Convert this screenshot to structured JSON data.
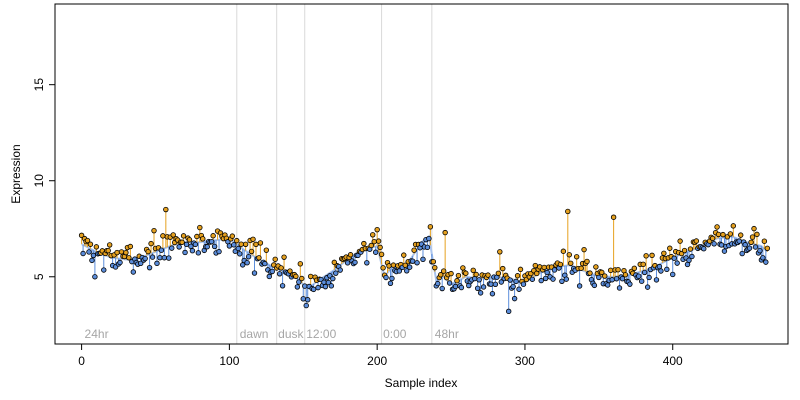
{
  "chart_data": {
    "type": "scatter",
    "title": "",
    "xlabel": "Sample index",
    "ylabel": "Expression",
    "xlim": [
      -18,
      478
    ],
    "ylim": [
      1.5,
      19.2
    ],
    "x_ticks": [
      0,
      100,
      200,
      300,
      400
    ],
    "y_ticks": [
      5,
      10,
      15
    ],
    "grid": false,
    "legend": "none",
    "colors": {
      "above_trend": "#e6a11f",
      "below_trend": "#5b8ddb",
      "trend": "#aac4ee",
      "points": "#000000",
      "dividers": "#d9d9d9",
      "phase_text": "#a6a6a6"
    },
    "phase_dividers": [
      105,
      132,
      151,
      203,
      237
    ],
    "phase_labels": [
      {
        "x": 2,
        "text": "24hr"
      },
      {
        "x": 107,
        "text": "dawn"
      },
      {
        "x": 133,
        "text": "dusk"
      },
      {
        "x": 152,
        "text": "12:00"
      },
      {
        "x": 204,
        "text": "0:00"
      },
      {
        "x": 239,
        "text": "48hr"
      }
    ],
    "trend": {
      "x": [
        0,
        10,
        20,
        30,
        40,
        50,
        60,
        70,
        80,
        90,
        100,
        110,
        120,
        130,
        140,
        145,
        150,
        155,
        160,
        170,
        180,
        190,
        200,
        205,
        210,
        220,
        230,
        235,
        240,
        245,
        250,
        260,
        270,
        280,
        290,
        300,
        310,
        320,
        330,
        340,
        350,
        360,
        370,
        380,
        390,
        400,
        410,
        420,
        430,
        440,
        450,
        460,
        464
      ],
      "y": [
        6.7,
        6.3,
        6.0,
        5.9,
        6.0,
        6.3,
        6.6,
        6.8,
        6.8,
        6.9,
        7.0,
        6.4,
        5.9,
        5.5,
        5.2,
        5.0,
        4.6,
        4.5,
        4.8,
        5.3,
        5.9,
        6.4,
        6.6,
        5.0,
        5.5,
        5.6,
        6.8,
        7.1,
        4.8,
        5.0,
        4.6,
        5.0,
        4.9,
        5.0,
        4.9,
        4.7,
        5.2,
        5.5,
        5.6,
        5.3,
        5.0,
        5.0,
        5.1,
        5.3,
        5.6,
        6.0,
        6.3,
        6.6,
        7.0,
        7.1,
        6.8,
        6.6,
        6.3
      ]
    },
    "highlights": [
      {
        "x": 57,
        "y": 8.5
      },
      {
        "x": 49,
        "y": 7.4
      },
      {
        "x": 236,
        "y": 7.6
      },
      {
        "x": 246,
        "y": 7.3
      },
      {
        "x": 329,
        "y": 8.4
      },
      {
        "x": 360,
        "y": 8.1
      },
      {
        "x": 283,
        "y": 6.3
      },
      {
        "x": 152,
        "y": 3.5
      },
      {
        "x": 289,
        "y": 3.2
      },
      {
        "x": 9,
        "y": 5.0
      }
    ],
    "noise_seed": 7
  }
}
